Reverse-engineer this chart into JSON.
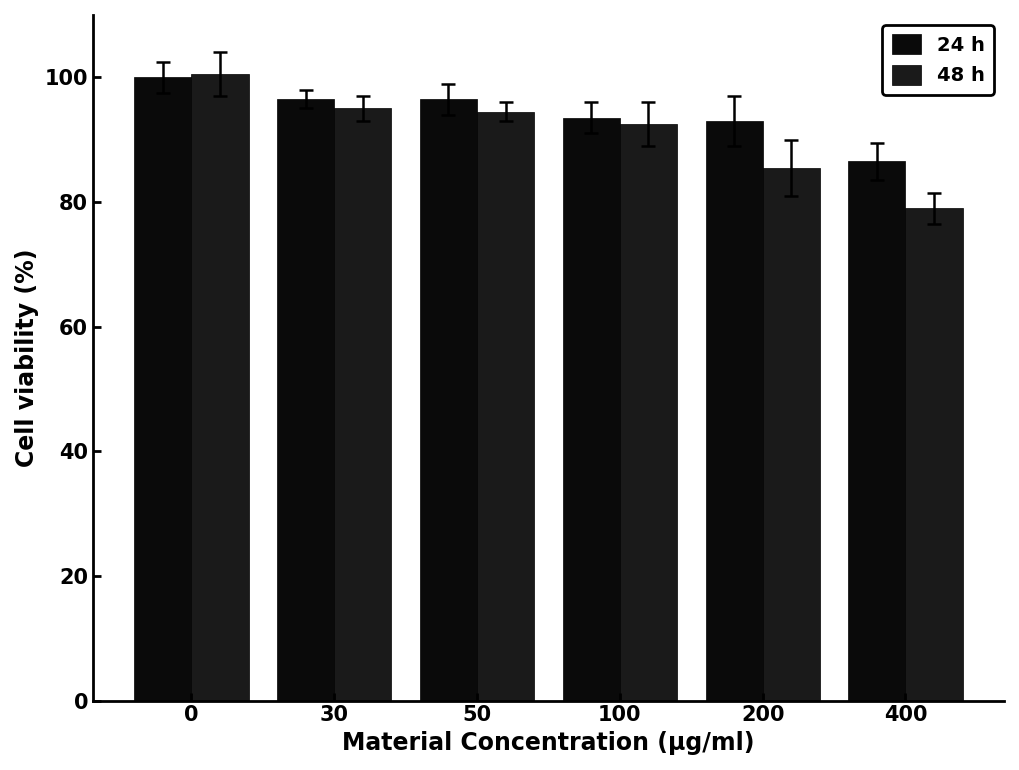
{
  "categories": [
    "0",
    "30",
    "50",
    "100",
    "200",
    "400"
  ],
  "values_24h": [
    100.0,
    96.5,
    96.5,
    93.5,
    93.0,
    86.5
  ],
  "values_48h": [
    100.5,
    95.0,
    94.5,
    92.5,
    85.5,
    79.0
  ],
  "errors_24h": [
    2.5,
    1.5,
    2.5,
    2.5,
    4.0,
    3.0
  ],
  "errors_48h": [
    3.5,
    2.0,
    1.5,
    3.5,
    4.5,
    2.5
  ],
  "bar_color_24h": "#0a0a0a",
  "bar_color_48h": "#1a1a1a",
  "ylabel": "Cell viability (%)",
  "xlabel": "Material Concentration (μg/ml)",
  "ylim": [
    0,
    110
  ],
  "yticks": [
    0,
    20,
    40,
    60,
    80,
    100
  ],
  "legend_labels": [
    "24 h",
    "48 h"
  ],
  "bar_width": 0.4,
  "background_color": "#ffffff",
  "label_fontsize": 17,
  "tick_fontsize": 15,
  "legend_fontsize": 14,
  "bar_edge_color": "#000000",
  "spine_linewidth": 2.0,
  "error_linewidth": 1.8,
  "capsize": 5,
  "capthick": 1.8
}
